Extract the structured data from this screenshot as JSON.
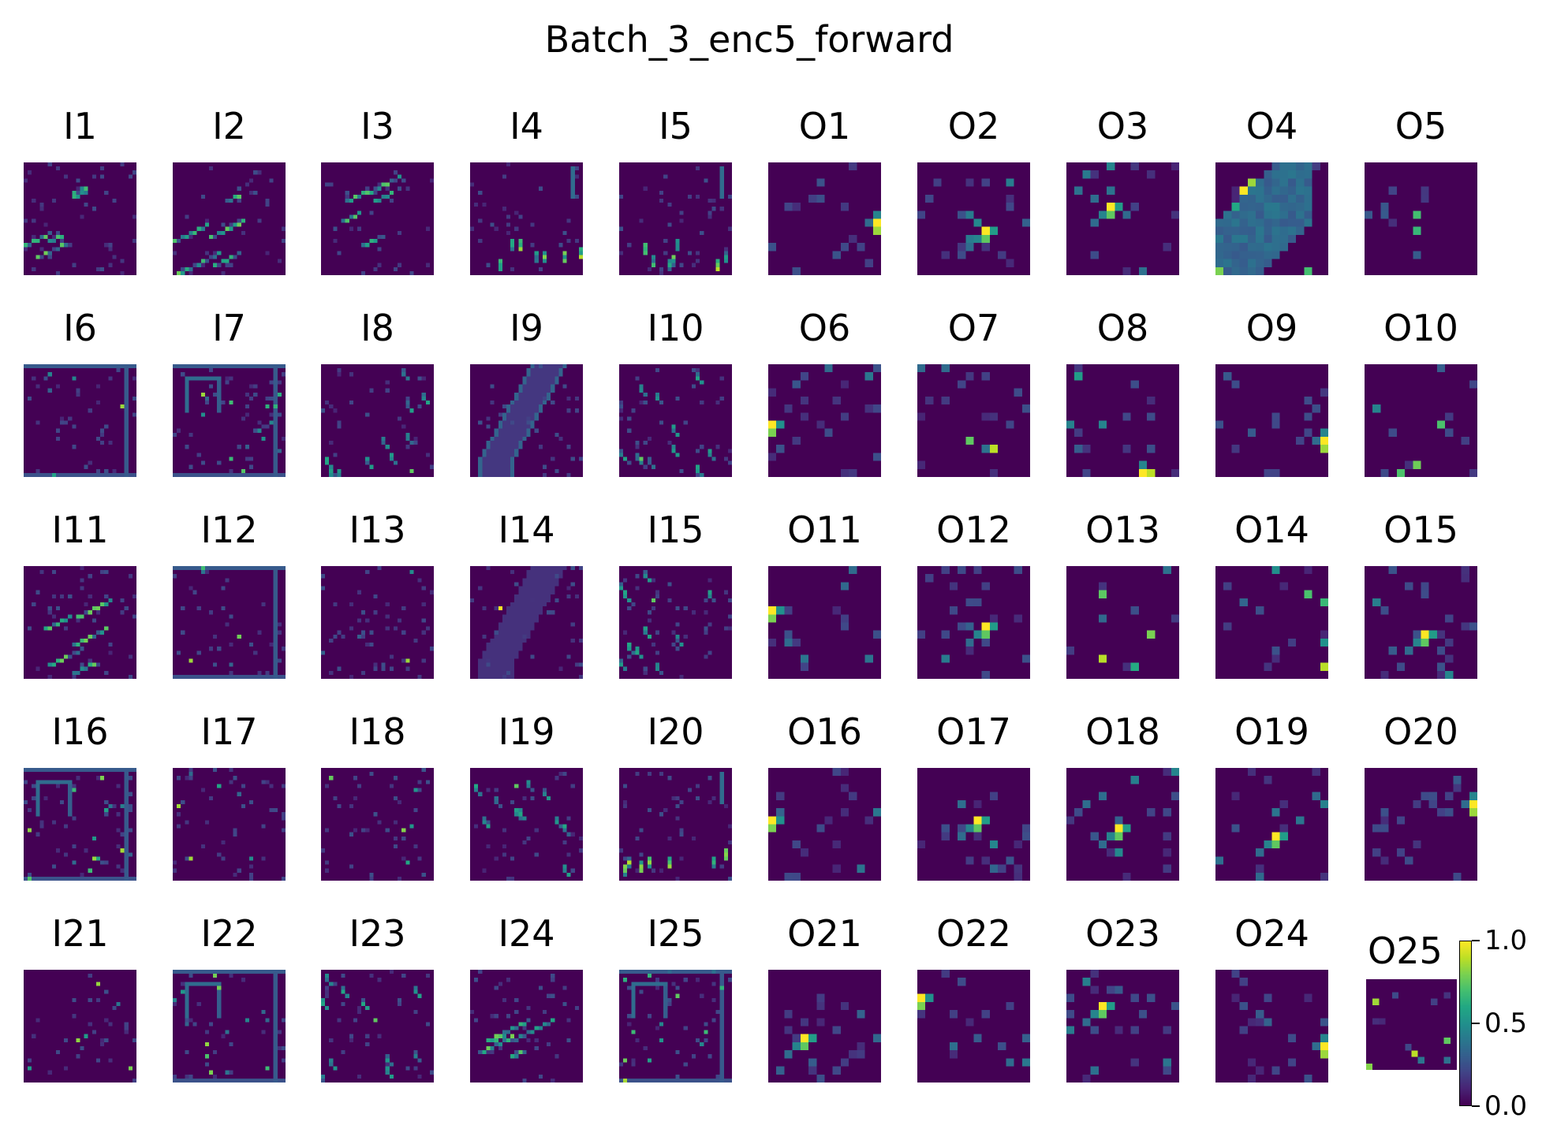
{
  "chart_data": {
    "type": "heatmap",
    "title": "Batch_3_enc5_forward",
    "colormap": "viridis",
    "vmin": 0.0,
    "vmax": 1.0,
    "grid": false,
    "layout": {
      "rows": 5,
      "columns": 10
    },
    "panels": [
      {
        "label": "I1",
        "kind": "input",
        "resolution": 28,
        "texture": "diagonal-streaks"
      },
      {
        "label": "I2",
        "kind": "input",
        "resolution": 28,
        "texture": "diagonal-streaks"
      },
      {
        "label": "I3",
        "kind": "input",
        "resolution": 28,
        "texture": "diagonal-streaks"
      },
      {
        "label": "I4",
        "kind": "input",
        "resolution": 28,
        "texture": "bottom-dashes"
      },
      {
        "label": "I5",
        "kind": "input",
        "resolution": 28,
        "texture": "bottom-dashes"
      },
      {
        "label": "O1",
        "kind": "output",
        "resolution": 14,
        "texture": "right-edge-blob"
      },
      {
        "label": "O2",
        "kind": "output",
        "resolution": 14,
        "texture": "center-blob"
      },
      {
        "label": "O3",
        "kind": "output",
        "resolution": 14,
        "texture": "center-blob"
      },
      {
        "label": "O4",
        "kind": "output",
        "resolution": 14,
        "texture": "broad-teal"
      },
      {
        "label": "O5",
        "kind": "output",
        "resolution": 14,
        "texture": "sparse"
      },
      {
        "label": "I6",
        "kind": "input",
        "resolution": 28,
        "texture": "outline"
      },
      {
        "label": "I7",
        "kind": "input",
        "resolution": 28,
        "texture": "outline-dense"
      },
      {
        "label": "I8",
        "kind": "input",
        "resolution": 28,
        "texture": "sparse-lines"
      },
      {
        "label": "I9",
        "kind": "input",
        "resolution": 28,
        "texture": "region-outline"
      },
      {
        "label": "I10",
        "kind": "input",
        "resolution": 28,
        "texture": "sparse-lines"
      },
      {
        "label": "O6",
        "kind": "output",
        "resolution": 14,
        "texture": "left-edge-blob"
      },
      {
        "label": "O7",
        "kind": "output",
        "resolution": 14,
        "texture": "sparse"
      },
      {
        "label": "O8",
        "kind": "output",
        "resolution": 14,
        "texture": "bottom-blob"
      },
      {
        "label": "O9",
        "kind": "output",
        "resolution": 14,
        "texture": "right-edge-blob"
      },
      {
        "label": "O10",
        "kind": "output",
        "resolution": 14,
        "texture": "sparse"
      },
      {
        "label": "I11",
        "kind": "input",
        "resolution": 28,
        "texture": "diagonal-streaks"
      },
      {
        "label": "I12",
        "kind": "input",
        "resolution": 28,
        "texture": "outline"
      },
      {
        "label": "I13",
        "kind": "input",
        "resolution": 28,
        "texture": "sparse"
      },
      {
        "label": "I14",
        "kind": "input",
        "resolution": 28,
        "texture": "region-fill"
      },
      {
        "label": "I15",
        "kind": "input",
        "resolution": 28,
        "texture": "sparse-lines"
      },
      {
        "label": "O11",
        "kind": "output",
        "resolution": 14,
        "texture": "left-edge-blob"
      },
      {
        "label": "O12",
        "kind": "output",
        "resolution": 14,
        "texture": "center-blob"
      },
      {
        "label": "O13",
        "kind": "output",
        "resolution": 14,
        "texture": "sparse"
      },
      {
        "label": "O14",
        "kind": "output",
        "resolution": 14,
        "texture": "sparse"
      },
      {
        "label": "O15",
        "kind": "output",
        "resolution": 14,
        "texture": "center-blob"
      },
      {
        "label": "I16",
        "kind": "input",
        "resolution": 28,
        "texture": "outline-dense"
      },
      {
        "label": "I17",
        "kind": "input",
        "resolution": 28,
        "texture": "sparse"
      },
      {
        "label": "I18",
        "kind": "input",
        "resolution": 28,
        "texture": "sparse"
      },
      {
        "label": "I19",
        "kind": "input",
        "resolution": 28,
        "texture": "sparse-lines"
      },
      {
        "label": "I20",
        "kind": "input",
        "resolution": 28,
        "texture": "bottom-dashes"
      },
      {
        "label": "O16",
        "kind": "output",
        "resolution": 14,
        "texture": "left-edge-blob"
      },
      {
        "label": "O17",
        "kind": "output",
        "resolution": 14,
        "texture": "center-blob"
      },
      {
        "label": "O18",
        "kind": "output",
        "resolution": 14,
        "texture": "center-blob"
      },
      {
        "label": "O19",
        "kind": "output",
        "resolution": 14,
        "texture": "center-blob"
      },
      {
        "label": "O20",
        "kind": "output",
        "resolution": 14,
        "texture": "right-edge-blob"
      },
      {
        "label": "I21",
        "kind": "input",
        "resolution": 28,
        "texture": "sparse"
      },
      {
        "label": "I22",
        "kind": "input",
        "resolution": 28,
        "texture": "outline-dense"
      },
      {
        "label": "I23",
        "kind": "input",
        "resolution": 28,
        "texture": "sparse-lines"
      },
      {
        "label": "I24",
        "kind": "input",
        "resolution": 28,
        "texture": "diagonal-streaks"
      },
      {
        "label": "I25",
        "kind": "input",
        "resolution": 28,
        "texture": "outline-dense"
      },
      {
        "label": "O21",
        "kind": "output",
        "resolution": 14,
        "texture": "center-blob"
      },
      {
        "label": "O22",
        "kind": "output",
        "resolution": 14,
        "texture": "left-edge-blob"
      },
      {
        "label": "O23",
        "kind": "output",
        "resolution": 14,
        "texture": "center-blob"
      },
      {
        "label": "O24",
        "kind": "output",
        "resolution": 14,
        "texture": "right-edge-blob"
      },
      {
        "label": "O25",
        "kind": "output",
        "resolution": 14,
        "texture": "sparse"
      }
    ],
    "colorbar": {
      "ticks": [
        {
          "value": 1.0,
          "label": "1.0"
        },
        {
          "value": 0.5,
          "label": "0.5"
        },
        {
          "value": 0.0,
          "label": "0.0"
        }
      ]
    }
  }
}
